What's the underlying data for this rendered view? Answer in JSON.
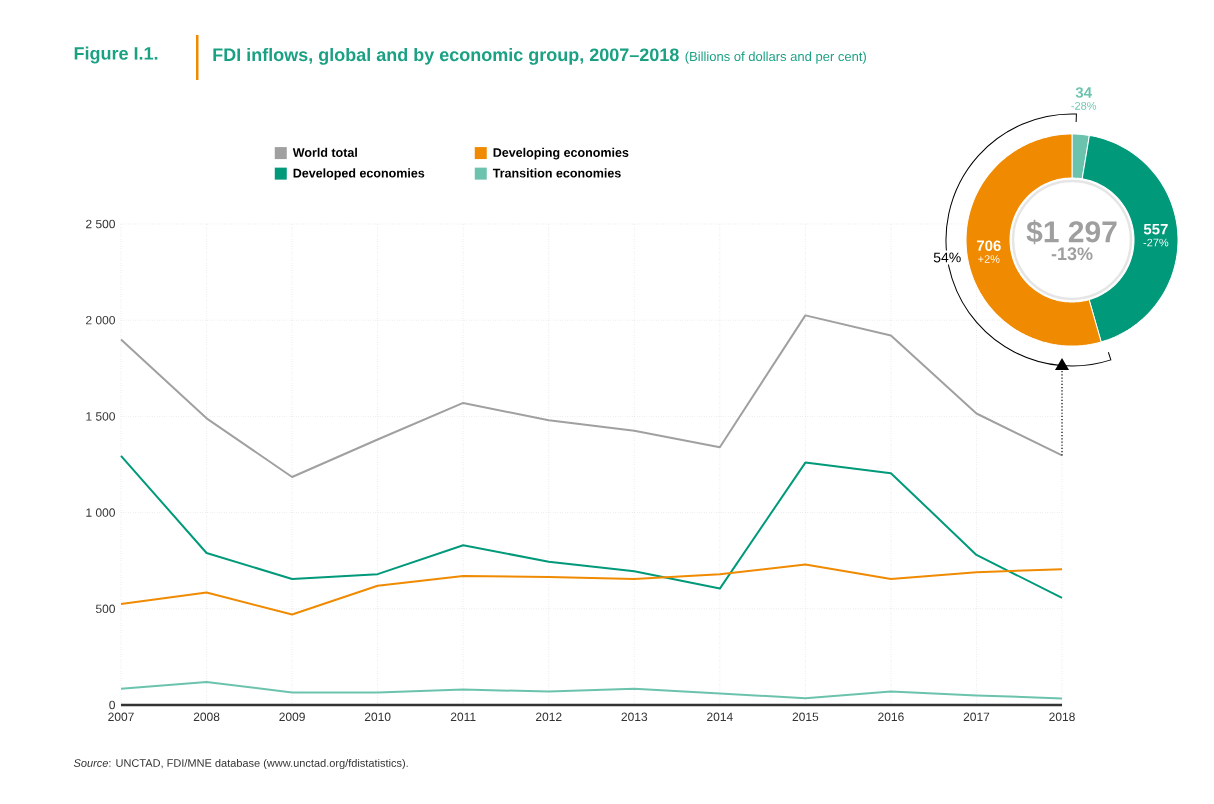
{
  "chart_data": [
    {
      "type": "line",
      "title": "FDI inflows, global and by economic group, 2007–2018",
      "subtitle": "(Billions of dollars and per cent)",
      "x": [
        2007,
        2008,
        2009,
        2010,
        2011,
        2012,
        2013,
        2014,
        2015,
        2016,
        2017,
        2018
      ],
      "xlim": [
        2007,
        2018
      ],
      "xticks": [
        2007,
        2008,
        2009,
        2010,
        2011,
        2012,
        2013,
        2014,
        2015,
        2016,
        2017,
        2018
      ],
      "ylim": [
        0,
        2500
      ],
      "yticks": [
        0,
        500,
        {
          "value": 1000,
          "label": "1 000"
        },
        {
          "value": 1500,
          "label": "1 500"
        },
        {
          "value": 2000,
          "label": "2 000"
        },
        {
          "value": 2500,
          "label": "2 500"
        }
      ],
      "grid": true,
      "legend": "top",
      "series": [
        {
          "name": "World total",
          "color": "#a0a0a0",
          "values": [
            1900,
            1490,
            1185,
            1380,
            1570,
            1480,
            1425,
            1340,
            2025,
            1920,
            1515,
            1297
          ]
        },
        {
          "name": "Developed economies",
          "color": "#00997a",
          "values": [
            1295,
            790,
            655,
            680,
            830,
            745,
            695,
            605,
            1260,
            1205,
            780,
            557
          ]
        },
        {
          "name": "Developing economies",
          "color": "#f08a00",
          "values": [
            525,
            585,
            470,
            620,
            670,
            665,
            655,
            680,
            730,
            655,
            690,
            706
          ]
        },
        {
          "name": "Transition economies",
          "color": "#6cc3ad",
          "values": [
            85,
            120,
            65,
            65,
            80,
            70,
            85,
            60,
            35,
            70,
            50,
            34
          ]
        }
      ],
      "annotations": [
        "Figure I.1.",
        "*Source*: UNCTAD, FDI/MNE database (www.unctad.org/fdistatistics)."
      ]
    },
    {
      "type": "donut",
      "categories": [
        null,
        null,
        null
      ],
      "values": [
        34,
        557,
        706
      ],
      "colors": [
        "#6cc3ad",
        "#00997a",
        "#f08a00"
      ],
      "value_labels": [
        "34",
        "557",
        "706"
      ],
      "annotations": [
        "-28%",
        "-27%",
        "+2%",
        "$1 297",
        "-13%",
        "54%"
      ]
    }
  ]
}
